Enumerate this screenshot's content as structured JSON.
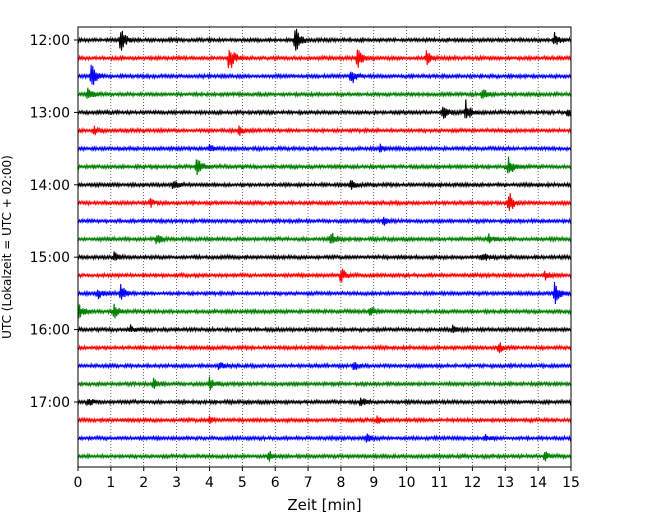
{
  "chart_data": {
    "type": "line",
    "title": "",
    "xlabel": "Zeit  [min]",
    "ylabel": "UTC (Lokalzeit = UTC + 02:00)",
    "xlim": [
      0,
      15
    ],
    "x_ticks": [
      "0",
      "1",
      "2",
      "3",
      "4",
      "5",
      "6",
      "7",
      "8",
      "9",
      "10",
      "11",
      "12",
      "13",
      "14",
      "15"
    ],
    "y_ticks": [
      {
        "trace": 0,
        "label": "12:00"
      },
      {
        "trace": 4,
        "label": "13:00"
      },
      {
        "trace": 8,
        "label": "14:00"
      },
      {
        "trace": 12,
        "label": "15:00"
      },
      {
        "trace": 16,
        "label": "16:00"
      },
      {
        "trace": 20,
        "label": "17:00"
      }
    ],
    "grid": "vertical dotted",
    "color_cycle": [
      "#000000",
      "#ff0000",
      "#0000ff",
      "#008000"
    ],
    "traces": [
      {
        "start": "12:00",
        "events": [
          {
            "t": 1.3,
            "a": 0.8
          },
          {
            "t": 6.6,
            "a": 1.0
          },
          {
            "t": 14.5,
            "a": 0.45
          }
        ]
      },
      {
        "start": "12:15",
        "events": [
          {
            "t": 4.6,
            "a": 1.0
          },
          {
            "t": 8.5,
            "a": 0.9
          },
          {
            "t": 10.6,
            "a": 0.45
          }
        ]
      },
      {
        "start": "12:30",
        "events": [
          {
            "t": 0.4,
            "a": 0.9
          },
          {
            "t": 8.3,
            "a": 0.6
          }
        ]
      },
      {
        "start": "12:45",
        "events": [
          {
            "t": 0.3,
            "a": 0.4
          },
          {
            "t": 12.3,
            "a": 0.4
          }
        ]
      },
      {
        "start": "13:00",
        "events": [
          {
            "t": 11.8,
            "a": 0.7
          },
          {
            "t": 11.1,
            "a": 0.5
          },
          {
            "t": 14.9,
            "a": 0.3
          }
        ]
      },
      {
        "start": "13:15",
        "events": [
          {
            "t": 0.5,
            "a": 0.3
          },
          {
            "t": 4.9,
            "a": 0.3
          }
        ]
      },
      {
        "start": "13:30",
        "events": [
          {
            "t": 4.0,
            "a": 0.25
          },
          {
            "t": 9.2,
            "a": 0.25
          }
        ]
      },
      {
        "start": "13:45",
        "events": [
          {
            "t": 3.6,
            "a": 0.8
          },
          {
            "t": 13.1,
            "a": 0.7
          }
        ]
      },
      {
        "start": "14:00",
        "events": [
          {
            "t": 2.9,
            "a": 0.3
          },
          {
            "t": 8.3,
            "a": 0.3
          }
        ]
      },
      {
        "start": "14:15",
        "events": [
          {
            "t": 13.1,
            "a": 0.8
          },
          {
            "t": 2.2,
            "a": 0.25
          }
        ]
      },
      {
        "start": "14:30",
        "events": [
          {
            "t": 9.3,
            "a": 0.25
          }
        ]
      },
      {
        "start": "14:45",
        "events": [
          {
            "t": 7.7,
            "a": 0.5
          },
          {
            "t": 2.4,
            "a": 0.35
          },
          {
            "t": 12.5,
            "a": 0.35
          }
        ]
      },
      {
        "start": "15:00",
        "events": [
          {
            "t": 1.1,
            "a": 0.35
          },
          {
            "t": 12.3,
            "a": 0.3
          }
        ]
      },
      {
        "start": "15:15",
        "events": [
          {
            "t": 8.0,
            "a": 0.55
          },
          {
            "t": 14.2,
            "a": 0.3
          }
        ]
      },
      {
        "start": "15:30",
        "events": [
          {
            "t": 1.3,
            "a": 0.6
          },
          {
            "t": 14.5,
            "a": 0.85
          },
          {
            "t": 0.6,
            "a": 0.35
          }
        ]
      },
      {
        "start": "15:45",
        "events": [
          {
            "t": 0.0,
            "a": 0.6
          },
          {
            "t": 1.1,
            "a": 0.4
          },
          {
            "t": 8.9,
            "a": 0.4
          }
        ]
      },
      {
        "start": "16:00",
        "events": [
          {
            "t": 1.6,
            "a": 0.25
          },
          {
            "t": 11.4,
            "a": 0.25
          }
        ]
      },
      {
        "start": "16:15",
        "events": [
          {
            "t": 12.8,
            "a": 0.35
          }
        ]
      },
      {
        "start": "16:30",
        "events": [
          {
            "t": 4.3,
            "a": 0.3
          },
          {
            "t": 8.4,
            "a": 0.3
          }
        ]
      },
      {
        "start": "16:45",
        "events": [
          {
            "t": 4.0,
            "a": 0.4
          },
          {
            "t": 2.3,
            "a": 0.3
          }
        ]
      },
      {
        "start": "17:00",
        "events": [
          {
            "t": 8.6,
            "a": 0.35
          },
          {
            "t": 0.3,
            "a": 0.3
          }
        ]
      },
      {
        "start": "17:15",
        "events": [
          {
            "t": 4.0,
            "a": 0.25
          },
          {
            "t": 9.1,
            "a": 0.25
          }
        ]
      },
      {
        "start": "17:30",
        "events": [
          {
            "t": 8.8,
            "a": 0.3
          },
          {
            "t": 12.4,
            "a": 0.25
          }
        ]
      },
      {
        "start": "17:45",
        "events": [
          {
            "t": 5.8,
            "a": 0.35
          },
          {
            "t": 14.2,
            "a": 0.3
          }
        ]
      }
    ]
  }
}
